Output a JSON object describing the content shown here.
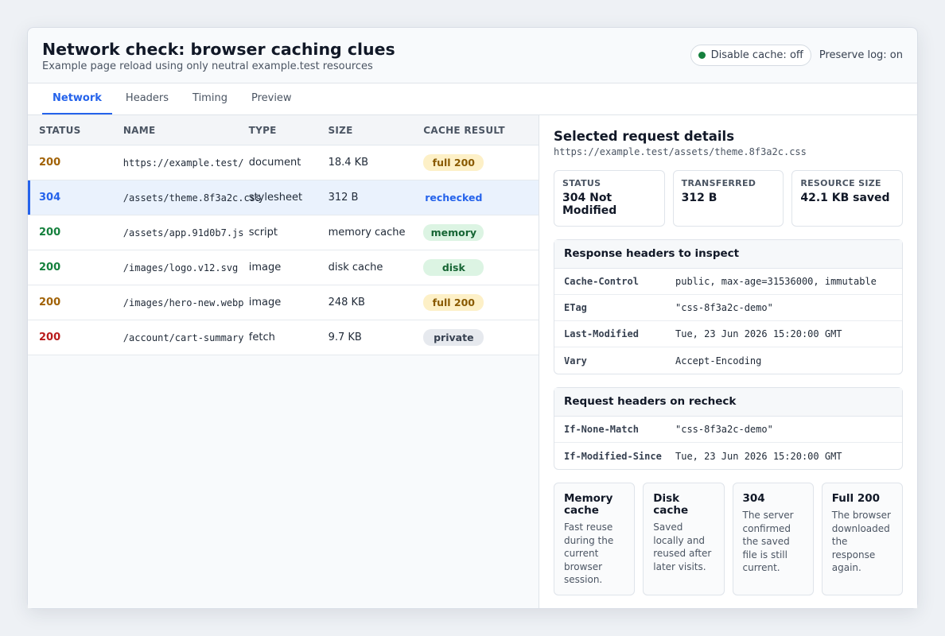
{
  "header": {
    "title": "Network check: browser caching clues",
    "subtitle": "Example page reload using only neutral example.test resources",
    "disable_cache": "Disable cache: off",
    "preserve_log": "Preserve log: on"
  },
  "tabs": [
    "Network",
    "Headers",
    "Timing",
    "Preview"
  ],
  "table": {
    "columns": [
      "STATUS",
      "NAME",
      "TYPE",
      "SIZE",
      "CACHE RESULT"
    ],
    "rows": [
      {
        "status": "200",
        "name": "https://example.test/",
        "type": "document",
        "size": "18.4 KB",
        "cache": "full 200"
      },
      {
        "status": "304",
        "name": "/assets/theme.8f3a2c.css",
        "type": "stylesheet",
        "size": "312 B",
        "cache": "rechecked"
      },
      {
        "status": "200",
        "name": "/assets/app.91d0b7.js",
        "type": "script",
        "size": "memory cache",
        "cache": "memory"
      },
      {
        "status": "200",
        "name": "/images/logo.v12.svg",
        "type": "image",
        "size": "disk cache",
        "cache": "disk"
      },
      {
        "status": "200",
        "name": "/images/hero-new.webp",
        "type": "image",
        "size": "248 KB",
        "cache": "full 200"
      },
      {
        "status": "200",
        "name": "/account/cart-summary",
        "type": "fetch",
        "size": "9.7 KB",
        "cache": "private"
      }
    ]
  },
  "details": {
    "title": "Selected request details",
    "url": "https://example.test/assets/theme.8f3a2c.css",
    "stats": [
      {
        "label": "STATUS",
        "value": "304 Not Modified"
      },
      {
        "label": "TRANSFERRED",
        "value": "312 B"
      },
      {
        "label": "RESOURCE SIZE",
        "value": "42.1 KB saved"
      }
    ],
    "response_headers": {
      "title": "Response headers to inspect",
      "items": [
        {
          "key": "Cache-Control",
          "value": "public, max-age=31536000, immutable"
        },
        {
          "key": "ETag",
          "value": "\"css-8f3a2c-demo\""
        },
        {
          "key": "Last-Modified",
          "value": "Tue, 23 Jun 2026 15:20:00 GMT"
        },
        {
          "key": "Vary",
          "value": "Accept-Encoding"
        }
      ]
    },
    "request_headers": {
      "title": "Request headers on recheck",
      "items": [
        {
          "key": "If-None-Match",
          "value": "\"css-8f3a2c-demo\""
        },
        {
          "key": "If-Modified-Since",
          "value": "Tue, 23 Jun 2026 15:20:00 GMT"
        }
      ]
    },
    "legend": [
      {
        "title": "Memory cache",
        "desc": "Fast reuse during the current browser session."
      },
      {
        "title": "Disk cache",
        "desc": "Saved locally and reused after later visits."
      },
      {
        "title": "304",
        "desc": "The server confirmed the saved file is still current."
      },
      {
        "title": "Full 200",
        "desc": "The browser downloaded the response again."
      }
    ]
  },
  "colors": {
    "accent": "#2563eb",
    "status_full": "#a16207",
    "status_ok": "#15803d",
    "status_private": "#b91c1c"
  }
}
